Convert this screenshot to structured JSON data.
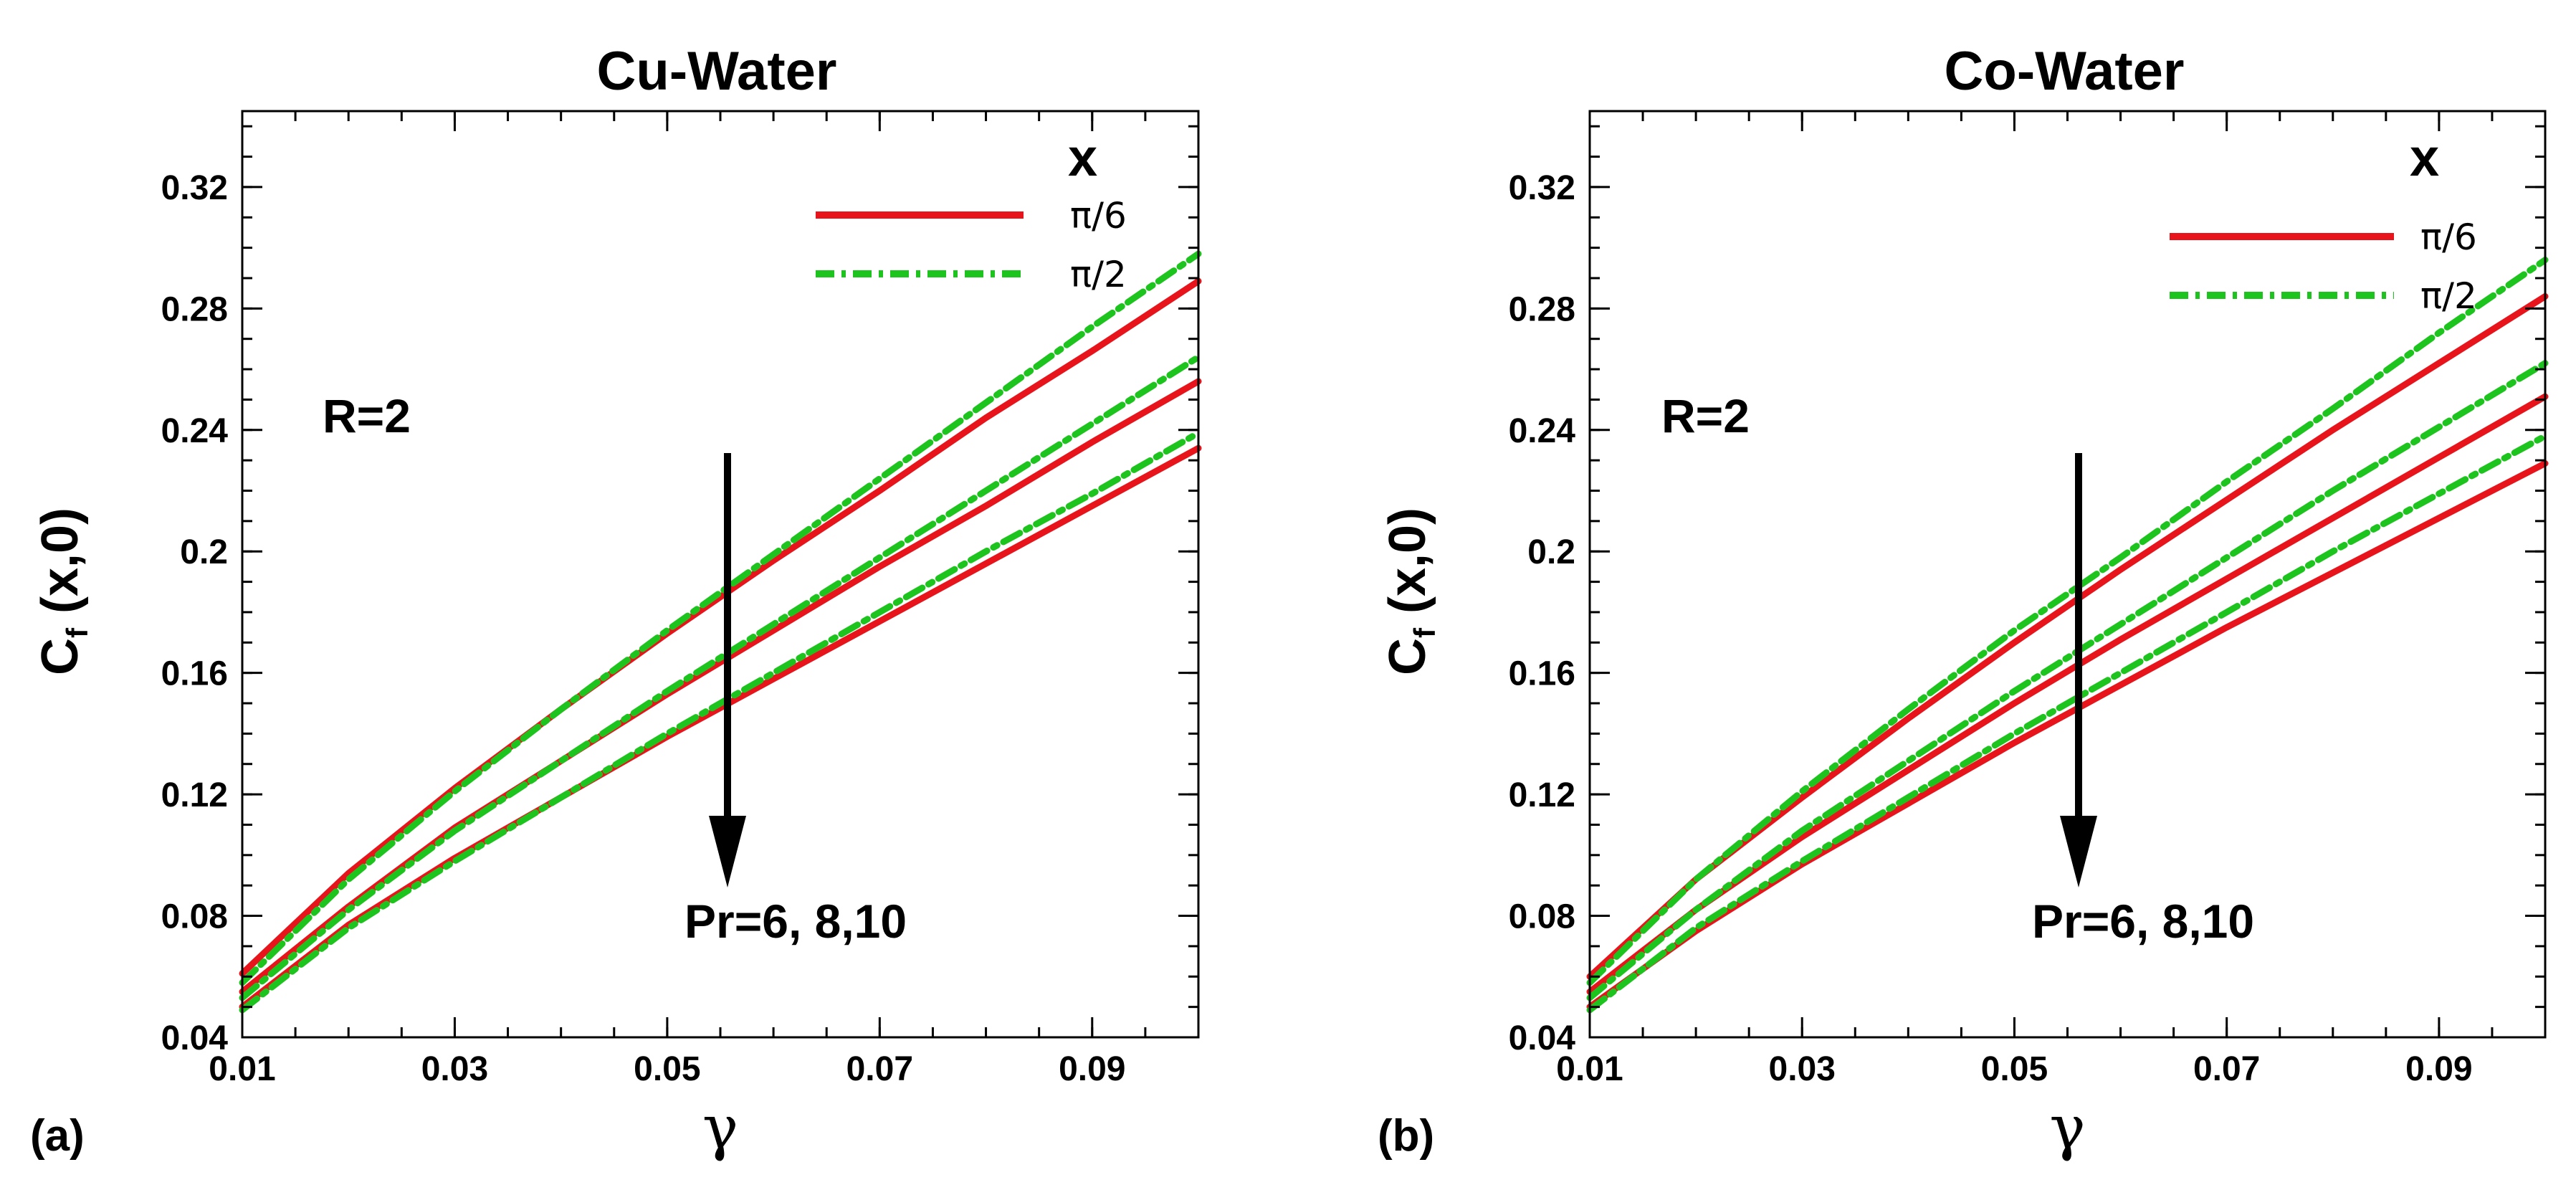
{
  "figure": {
    "domain": "chart"
  },
  "chart_data": [
    {
      "type": "line",
      "panel_label": "(a)",
      "title": "Cu-Water",
      "xlabel": "γ",
      "ylabel": "C",
      "ylabel_sub": "f",
      "ylabel_tail": " (x,0)",
      "xlim": [
        0.01,
        0.1
      ],
      "ylim": [
        0.04,
        0.345
      ],
      "xticks": [
        0.01,
        0.03,
        0.05,
        0.07,
        0.09
      ],
      "xtick_labels": [
        "0.01",
        "0.03",
        "0.05",
        "0.07",
        "0.09"
      ],
      "yticks": [
        0.04,
        0.08,
        0.12,
        0.16,
        0.2,
        0.24,
        0.28,
        0.32
      ],
      "ytick_labels": [
        "0.04",
        "0.08",
        "0.12",
        "0.16",
        "0.2",
        "0.24",
        "0.28",
        "0.32"
      ],
      "legend_title": "x",
      "legend": [
        {
          "label": "π/6",
          "color": "#e8141c",
          "style": "solid"
        },
        {
          "label": "π/2",
          "color": "#1ec41e",
          "style": "dashdot"
        }
      ],
      "annotations": {
        "param": "R=2",
        "arrow_label": "Pr=6, 8,10"
      },
      "x": [
        0.01,
        0.02,
        0.03,
        0.04,
        0.05,
        0.06,
        0.07,
        0.08,
        0.09,
        0.1
      ],
      "series": [
        {
          "name": "π/6, Pr=6",
          "color": "#e8141c",
          "style": "solid",
          "values": [
            0.061,
            0.094,
            0.122,
            0.148,
            0.173,
            0.197,
            0.22,
            0.244,
            0.266,
            0.289
          ]
        },
        {
          "name": "π/6, Pr=8",
          "color": "#e8141c",
          "style": "solid",
          "values": [
            0.055,
            0.083,
            0.109,
            0.131,
            0.153,
            0.174,
            0.195,
            0.215,
            0.236,
            0.256
          ]
        },
        {
          "name": "π/6, Pr=10",
          "color": "#e8141c",
          "style": "solid",
          "values": [
            0.05,
            0.077,
            0.099,
            0.119,
            0.139,
            0.158,
            0.177,
            0.196,
            0.215,
            0.234
          ]
        },
        {
          "name": "π/2, Pr=6",
          "color": "#1ec41e",
          "style": "dashdot",
          "values": [
            0.058,
            0.092,
            0.121,
            0.148,
            0.174,
            0.199,
            0.224,
            0.249,
            0.274,
            0.298
          ]
        },
        {
          "name": "π/2, Pr=8",
          "color": "#1ec41e",
          "style": "dashdot",
          "values": [
            0.053,
            0.082,
            0.108,
            0.131,
            0.154,
            0.176,
            0.198,
            0.22,
            0.242,
            0.264
          ]
        },
        {
          "name": "π/2, Pr=10",
          "color": "#1ec41e",
          "style": "dashdot",
          "values": [
            0.049,
            0.076,
            0.098,
            0.119,
            0.14,
            0.16,
            0.18,
            0.2,
            0.219,
            0.239
          ]
        }
      ]
    },
    {
      "type": "line",
      "panel_label": "(b)",
      "title": "Co-Water",
      "xlabel": "γ",
      "ylabel": "C",
      "ylabel_sub": "f",
      "ylabel_tail": " (x,0)",
      "xlim": [
        0.01,
        0.1
      ],
      "ylim": [
        0.04,
        0.345
      ],
      "xticks": [
        0.01,
        0.03,
        0.05,
        0.07,
        0.09
      ],
      "xtick_labels": [
        "0.01",
        "0.03",
        "0.05",
        "0.07",
        "0.09"
      ],
      "yticks": [
        0.04,
        0.08,
        0.12,
        0.16,
        0.2,
        0.24,
        0.28,
        0.32
      ],
      "ytick_labels": [
        "0.04",
        "0.08",
        "0.12",
        "0.16",
        "0.2",
        "0.24",
        "0.28",
        "0.32"
      ],
      "legend_title": "x",
      "legend": [
        {
          "label": "π/6",
          "color": "#e8141c",
          "style": "solid"
        },
        {
          "label": "π/2",
          "color": "#1ec41e",
          "style": "dashdot"
        }
      ],
      "annotations": {
        "param": "R=2",
        "arrow_label": "Pr=6, 8,10"
      },
      "x": [
        0.01,
        0.02,
        0.03,
        0.04,
        0.05,
        0.06,
        0.07,
        0.08,
        0.09,
        0.1
      ],
      "series": [
        {
          "name": "π/6, Pr=6",
          "color": "#e8141c",
          "style": "solid",
          "values": [
            0.06,
            0.092,
            0.119,
            0.145,
            0.17,
            0.194,
            0.217,
            0.24,
            0.262,
            0.284
          ]
        },
        {
          "name": "π/6, Pr=8",
          "color": "#e8141c",
          "style": "solid",
          "values": [
            0.055,
            0.082,
            0.106,
            0.128,
            0.15,
            0.171,
            0.191,
            0.211,
            0.231,
            0.251
          ]
        },
        {
          "name": "π/6, Pr=10",
          "color": "#e8141c",
          "style": "solid",
          "values": [
            0.05,
            0.075,
            0.097,
            0.117,
            0.137,
            0.156,
            0.175,
            0.193,
            0.211,
            0.229
          ]
        },
        {
          "name": "π/2, Pr=6",
          "color": "#1ec41e",
          "style": "dashdot",
          "values": [
            0.058,
            0.092,
            0.121,
            0.148,
            0.174,
            0.198,
            0.223,
            0.247,
            0.272,
            0.296
          ]
        },
        {
          "name": "π/2, Pr=8",
          "color": "#1ec41e",
          "style": "dashdot",
          "values": [
            0.053,
            0.082,
            0.108,
            0.131,
            0.154,
            0.176,
            0.198,
            0.22,
            0.241,
            0.262
          ]
        },
        {
          "name": "π/2, Pr=10",
          "color": "#1ec41e",
          "style": "dashdot",
          "values": [
            0.049,
            0.076,
            0.098,
            0.119,
            0.14,
            0.16,
            0.18,
            0.2,
            0.219,
            0.238
          ]
        }
      ]
    }
  ]
}
